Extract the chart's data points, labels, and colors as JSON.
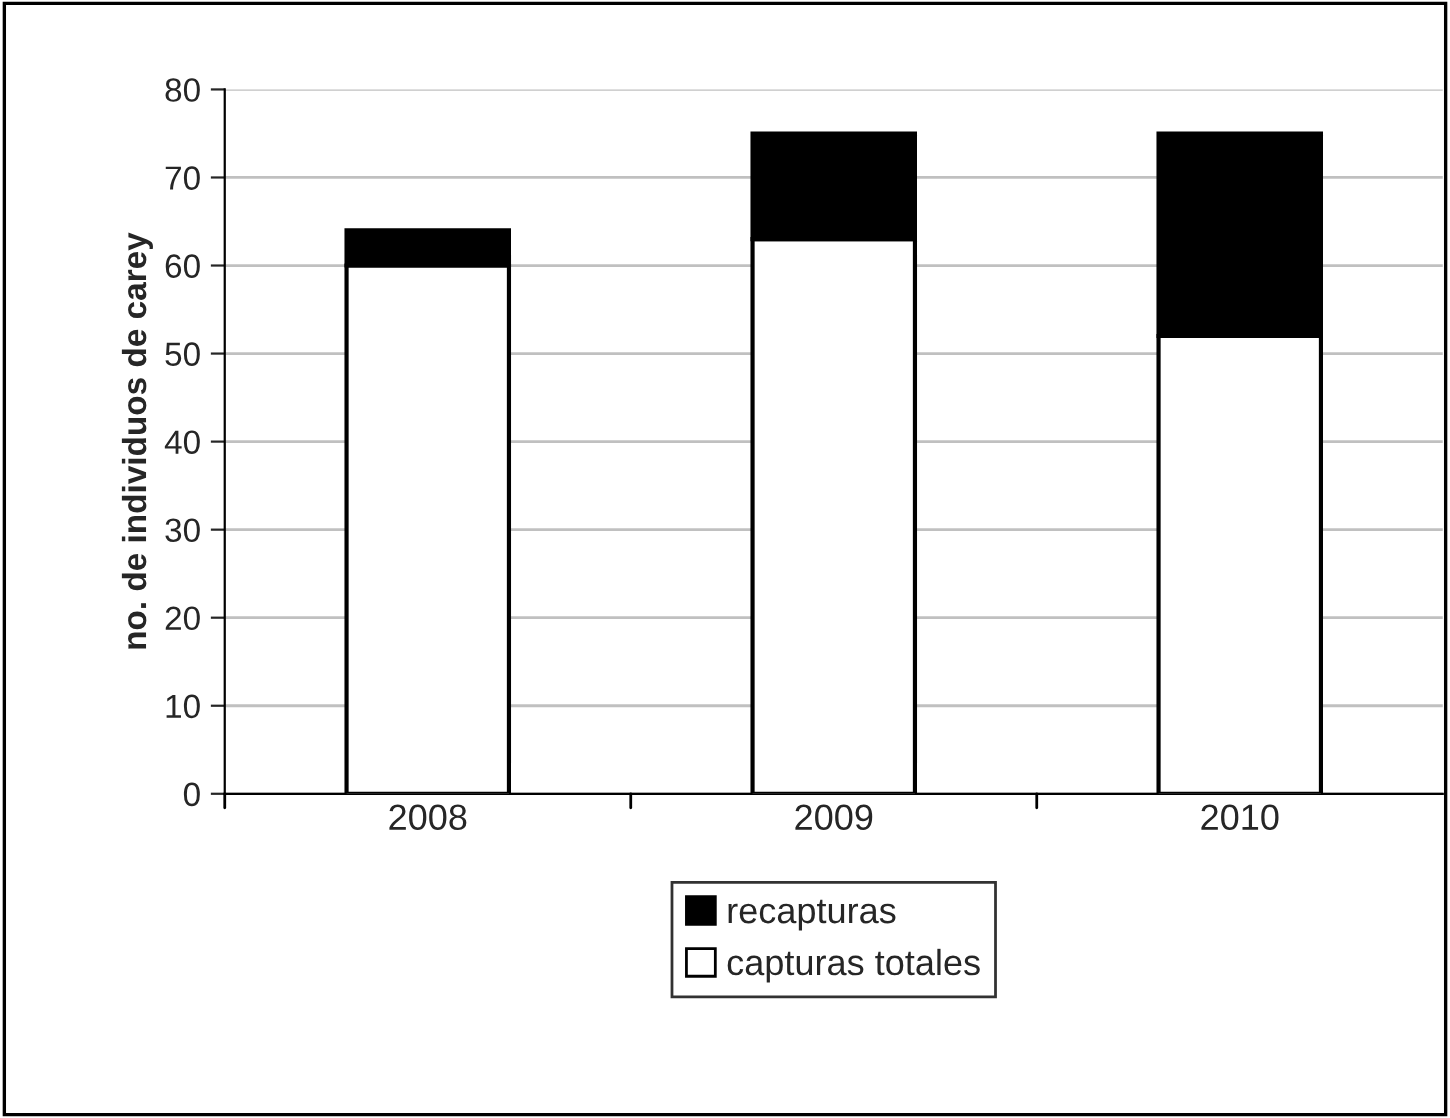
{
  "chart_data": {
    "type": "bar",
    "stacked": true,
    "ylabel": "no. de individuos de carey",
    "categories": [
      "2008",
      "2009",
      "2010"
    ],
    "series": [
      {
        "name": "capturas totales",
        "color": "#ffffff",
        "values": [
          60,
          63,
          52
        ]
      },
      {
        "name": "recapturas",
        "color": "#000000",
        "values": [
          4,
          12,
          23
        ]
      }
    ],
    "ylim": [
      0,
      80
    ],
    "yticks": [
      0,
      10,
      20,
      30,
      40,
      50,
      60,
      70,
      80
    ],
    "grid": "y",
    "legend": "bottom"
  }
}
